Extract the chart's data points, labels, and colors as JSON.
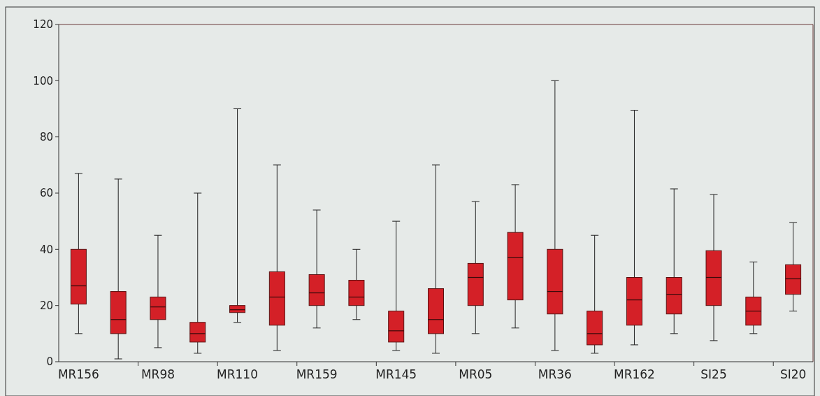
{
  "chart_data": {
    "type": "box",
    "categories": [
      "MR156",
      null,
      "MR98",
      null,
      "MR110",
      null,
      "MR159",
      null,
      "MR145",
      null,
      "MR05",
      null,
      "MR36",
      null,
      "MR162",
      null,
      "SI25",
      null,
      "SI20"
    ],
    "color": "#d42027",
    "ylim": [
      0,
      120
    ],
    "yticks": [
      0,
      20,
      40,
      60,
      80,
      100,
      120
    ],
    "grid": false,
    "boxes": [
      {
        "low": 10,
        "q1": 20.5,
        "median": 27,
        "q3": 40,
        "high": 67
      },
      {
        "low": 1,
        "q1": 10,
        "median": 15,
        "q3": 25,
        "high": 65
      },
      {
        "low": 5,
        "q1": 15,
        "median": 19.5,
        "q3": 23,
        "high": 45
      },
      {
        "low": 3,
        "q1": 7,
        "median": 10,
        "q3": 14,
        "high": 60
      },
      {
        "low": 14,
        "q1": 17.5,
        "median": 18.5,
        "q3": 20,
        "high": 90
      },
      {
        "low": 4,
        "q1": 13,
        "median": 23,
        "q3": 32,
        "high": 70
      },
      {
        "low": 12,
        "q1": 20,
        "median": 24.5,
        "q3": 31,
        "high": 54
      },
      {
        "low": 15,
        "q1": 20,
        "median": 23,
        "q3": 29,
        "high": 40
      },
      {
        "low": 4,
        "q1": 7,
        "median": 11,
        "q3": 18,
        "high": 50
      },
      {
        "low": 3,
        "q1": 10,
        "median": 15,
        "q3": 26,
        "high": 70
      },
      {
        "low": 10,
        "q1": 20,
        "median": 30,
        "q3": 35,
        "high": 57
      },
      {
        "low": 12,
        "q1": 22,
        "median": 37,
        "q3": 46,
        "high": 63
      },
      {
        "low": 4,
        "q1": 17,
        "median": 25,
        "q3": 40,
        "high": 100
      },
      {
        "low": 3,
        "q1": 6,
        "median": 10,
        "q3": 18,
        "high": 45
      },
      {
        "low": 6,
        "q1": 13,
        "median": 22,
        "q3": 30,
        "high": 89.5
      },
      {
        "low": 10,
        "q1": 17,
        "median": 24,
        "q3": 30,
        "high": 61.5
      },
      {
        "low": 7.5,
        "q1": 20,
        "median": 30,
        "q3": 39.5,
        "high": 59.5
      },
      {
        "low": 10,
        "q1": 13,
        "median": 18,
        "q3": 23,
        "high": 35.5
      },
      {
        "low": 18,
        "q1": 24,
        "median": 29.5,
        "q3": 34.5,
        "high": 49.5
      }
    ]
  }
}
